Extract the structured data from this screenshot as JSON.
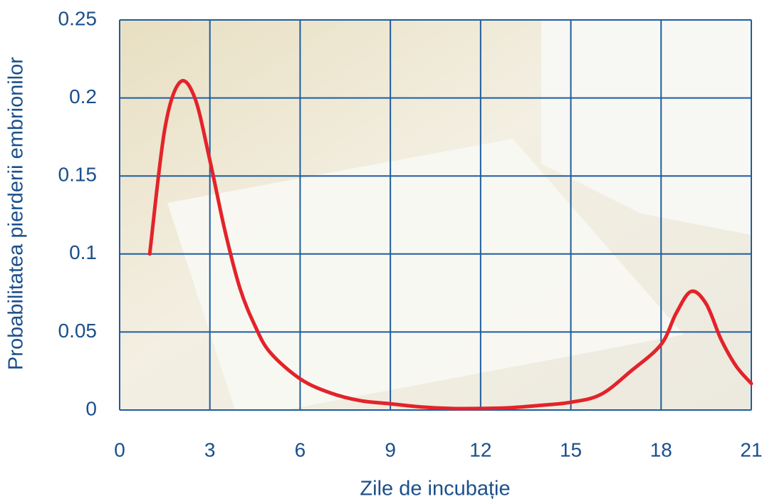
{
  "chart_data": {
    "type": "line",
    "x_label": "Zile de incubație",
    "y_label": "Probabilitatea pierderii embrionilor",
    "x": [
      1,
      1.5,
      2,
      2.5,
      3,
      3.5,
      4,
      4.5,
      5,
      6,
      7,
      8,
      9,
      10,
      11,
      12,
      13,
      14,
      15,
      16,
      17,
      18,
      18.5,
      19,
      19.5,
      20,
      20.5,
      21
    ],
    "series": [
      {
        "color": "#e3232a",
        "values": [
          0.1,
          0.18,
          0.21,
          0.2,
          0.16,
          0.115,
          0.078,
          0.054,
          0.037,
          0.02,
          0.011,
          0.006,
          0.004,
          0.002,
          0.001,
          0.001,
          0.0015,
          0.003,
          0.005,
          0.01,
          0.025,
          0.042,
          0.062,
          0.076,
          0.068,
          0.045,
          0.028,
          0.017
        ]
      }
    ],
    "xlim": [
      0,
      21
    ],
    "xticks": [
      0,
      3,
      6,
      9,
      12,
      15,
      18,
      21
    ],
    "ylim": [
      0,
      0.25
    ],
    "yticks": [
      0,
      0.05,
      0.1,
      0.15,
      0.2,
      0.25
    ],
    "grid": true,
    "grid_color": "#1f5d9e"
  }
}
